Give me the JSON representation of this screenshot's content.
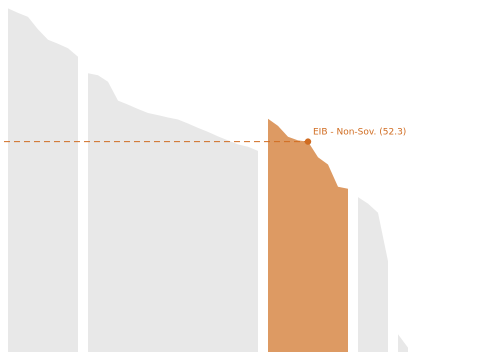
{
  "chart_data": {
    "type": "area",
    "title": "",
    "xlabel": "",
    "ylabel": "",
    "ylim": [
      0,
      87.5
    ],
    "colors": {
      "background_area": "#e8e8e8",
      "highlight_area": "#dd9a63",
      "accent": "#d06c21"
    },
    "highlight_group": "EIB - Non-Sov.",
    "annotation": {
      "text": "EIB - Non-Sov. (52.3)",
      "value": 52.3
    },
    "groups": [
      {
        "name": "",
        "highlight": false,
        "values": [
          85.4,
          84.3,
          83.3,
          80.2,
          77.6,
          76.6,
          75.5,
          73.4
        ]
      },
      {
        "name": "",
        "highlight": false,
        "values": [
          69.3,
          68.8,
          67.2,
          62.5,
          61.5,
          60.4,
          59.4,
          58.9,
          58.3,
          57.8,
          56.8,
          55.7,
          54.7,
          53.6,
          52.6,
          51.6,
          51.0,
          50.0
        ]
      },
      {
        "name": "EIB - Non-Sov.",
        "highlight": true,
        "values": [
          58.0,
          56.2,
          53.5,
          52.6,
          52.3,
          48.4,
          46.6,
          41.1,
          40.6
        ]
      },
      {
        "name": "",
        "highlight": false,
        "values": [
          38.5,
          36.9,
          34.6,
          22.6
        ]
      },
      {
        "name": "",
        "highlight": false,
        "values": [
          4.4,
          1.1
        ]
      }
    ]
  }
}
